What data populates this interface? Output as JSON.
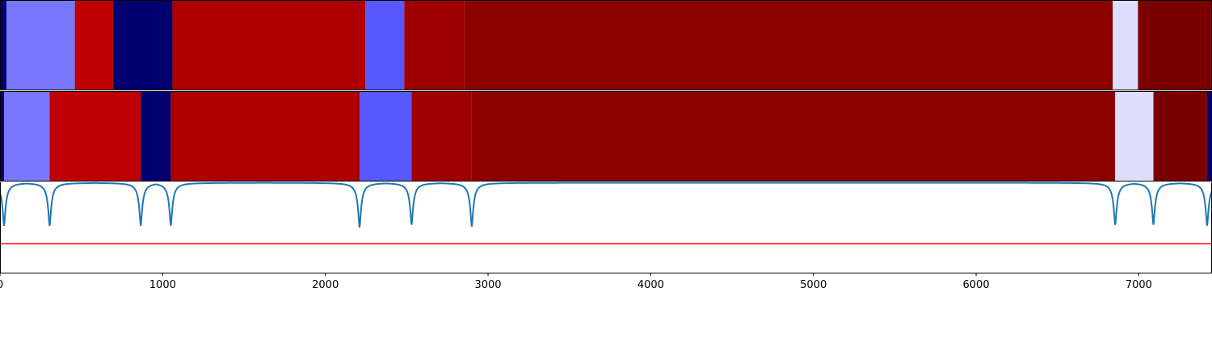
{
  "chart_data": [
    {
      "type": "heatmap",
      "title": "",
      "xlim": [
        0,
        7450
      ],
      "segments": [
        {
          "x0": 0,
          "x1": 40,
          "color": "#000070"
        },
        {
          "x0": 40,
          "x1": 460,
          "color": "#7878ff"
        },
        {
          "x0": 460,
          "x1": 695,
          "color": "#c00000"
        },
        {
          "x0": 695,
          "x1": 1060,
          "color": "#000070"
        },
        {
          "x0": 1060,
          "x1": 2245,
          "color": "#ae0000"
        },
        {
          "x0": 2245,
          "x1": 2485,
          "color": "#5858ff"
        },
        {
          "x0": 2485,
          "x1": 2855,
          "color": "#9e0000"
        },
        {
          "x0": 2855,
          "x1": 6840,
          "color": "#8c0000"
        },
        {
          "x0": 6840,
          "x1": 6995,
          "color": "#dedeff"
        },
        {
          "x0": 6995,
          "x1": 7450,
          "color": "#7a0000"
        }
      ]
    },
    {
      "type": "heatmap",
      "title": "",
      "xlim": [
        0,
        7450
      ],
      "segments": [
        {
          "x0": 0,
          "x1": 25,
          "color": "#000070"
        },
        {
          "x0": 25,
          "x1": 305,
          "color": "#7878ff"
        },
        {
          "x0": 305,
          "x1": 865,
          "color": "#c00000"
        },
        {
          "x0": 865,
          "x1": 1050,
          "color": "#000070"
        },
        {
          "x0": 1050,
          "x1": 2210,
          "color": "#ae0000"
        },
        {
          "x0": 2210,
          "x1": 2530,
          "color": "#5858ff"
        },
        {
          "x0": 2530,
          "x1": 2900,
          "color": "#9e0000"
        },
        {
          "x0": 2900,
          "x1": 6855,
          "color": "#8c0000"
        },
        {
          "x0": 6855,
          "x1": 7090,
          "color": "#dedeff"
        },
        {
          "x0": 7090,
          "x1": 7420,
          "color": "#7a0000"
        },
        {
          "x0": 7420,
          "x1": 7450,
          "color": "#000070"
        }
      ]
    },
    {
      "type": "line",
      "title": "",
      "xlabel": "",
      "ylabel": "",
      "xlim": [
        0,
        7450
      ],
      "ylim": [
        0,
        1
      ],
      "xticks": [
        0,
        1000,
        2000,
        3000,
        4000,
        5000,
        6000,
        7000
      ],
      "xtick_labels": [
        "0",
        "1000",
        "2000",
        "3000",
        "4000",
        "5000",
        "6000",
        "7000"
      ],
      "grid": false,
      "threshold": 0.32,
      "threshold_color": "#ff0000",
      "series_color": "#1f77b4",
      "baseline": 0.995,
      "dips": [
        {
          "x": 25,
          "y": 0.52
        },
        {
          "x": 305,
          "y": 0.52
        },
        {
          "x": 865,
          "y": 0.52
        },
        {
          "x": 1050,
          "y": 0.52
        },
        {
          "x": 2210,
          "y": 0.5
        },
        {
          "x": 2530,
          "y": 0.53
        },
        {
          "x": 2900,
          "y": 0.51
        },
        {
          "x": 6855,
          "y": 0.53
        },
        {
          "x": 7090,
          "y": 0.53
        },
        {
          "x": 7420,
          "y": 0.52
        }
      ]
    }
  ]
}
